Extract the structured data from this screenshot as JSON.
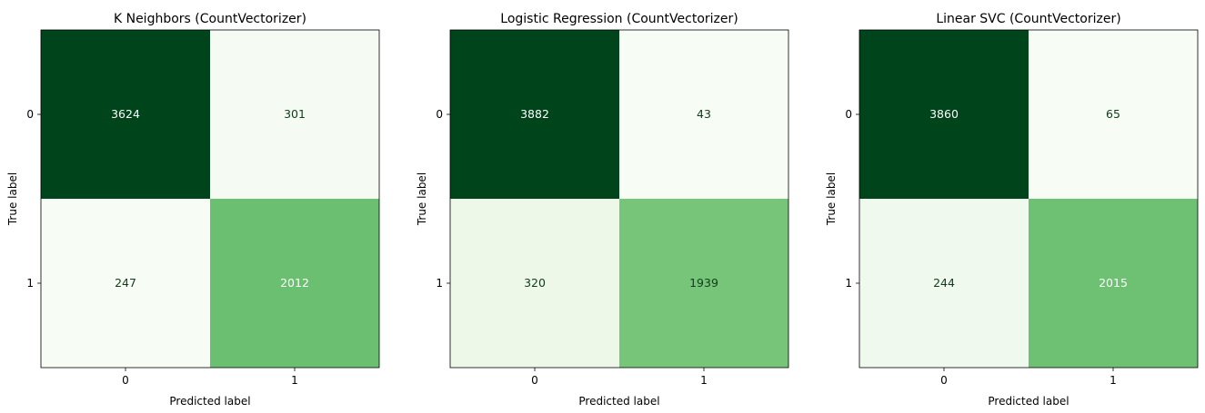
{
  "chart_data": [
    {
      "type": "heatmap",
      "title": "K Neighbors (CountVectorizer)",
      "xlabel": "Predicted label",
      "ylabel": "True label",
      "x_categories": [
        "0",
        "1"
      ],
      "y_categories": [
        "0",
        "1"
      ],
      "values": [
        [
          3624,
          301
        ],
        [
          247,
          2012
        ]
      ],
      "colormap": "Greens",
      "colorbar": false
    },
    {
      "type": "heatmap",
      "title": "Logistic Regression (CountVectorizer)",
      "xlabel": "Predicted label",
      "ylabel": "True label",
      "x_categories": [
        "0",
        "1"
      ],
      "y_categories": [
        "0",
        "1"
      ],
      "values": [
        [
          3882,
          43
        ],
        [
          320,
          1939
        ]
      ],
      "colormap": "Greens",
      "colorbar": false
    },
    {
      "type": "heatmap",
      "title": "Linear SVC (CountVectorizer)",
      "xlabel": "Predicted label",
      "ylabel": "True label",
      "x_categories": [
        "0",
        "1"
      ],
      "y_categories": [
        "0",
        "1"
      ],
      "values": [
        [
          3860,
          65
        ],
        [
          244,
          2015
        ]
      ],
      "colormap": "Greens",
      "colorbar": false
    }
  ]
}
